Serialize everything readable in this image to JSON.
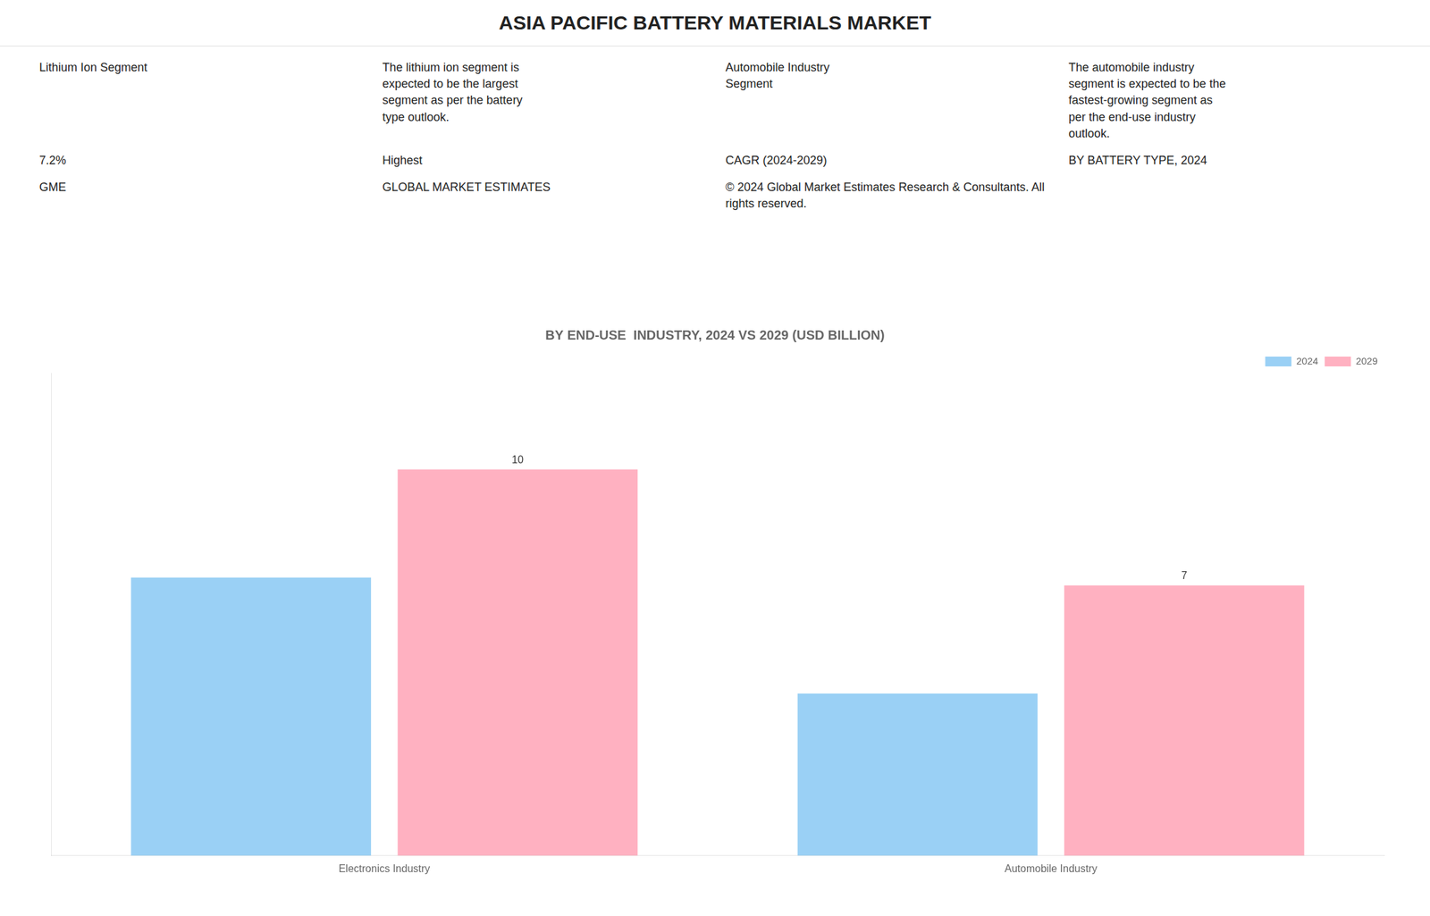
{
  "chart_data": {
    "type": "bar",
    "title": "ASIA PACIFIC BATTERY MATERIALS MARKET",
    "subtitle": "BY END-USE  INDUSTRY, 2024 VS 2029 (USD BILLION)",
    "categories": [
      "Electronics Industry",
      "Automobile Industry"
    ],
    "series": [
      {
        "name": "2024",
        "values": [
          7.2,
          4.2
        ]
      },
      {
        "name": "2029",
        "values": [
          10.0,
          7.0
        ],
        "data_labels": true
      }
    ],
    "ylim": [
      0,
      12.5
    ],
    "tick_labels": "x",
    "grid": false,
    "legend": "upper right",
    "annotations": [
      "Lithium Ion Segment",
      "The lithium ion segment is\nexpected to be the largest\nsegment as per the battery\ntype outlook.",
      "Automobile Industry\nSegment",
      "The automobile industry\nsegment is expected to be the\nfastest-growing segment as\nper the end-use industry\noutlook.",
      "7.2%",
      "Highest",
      "CAGR (2024-2029)",
      "BY BATTERY TYPE, 2024",
      "GME",
      "GLOBAL MARKET ESTIMATES",
      "© 2024 Global Market Estimates Research & Consultants. All rights reserved."
    ]
  }
}
